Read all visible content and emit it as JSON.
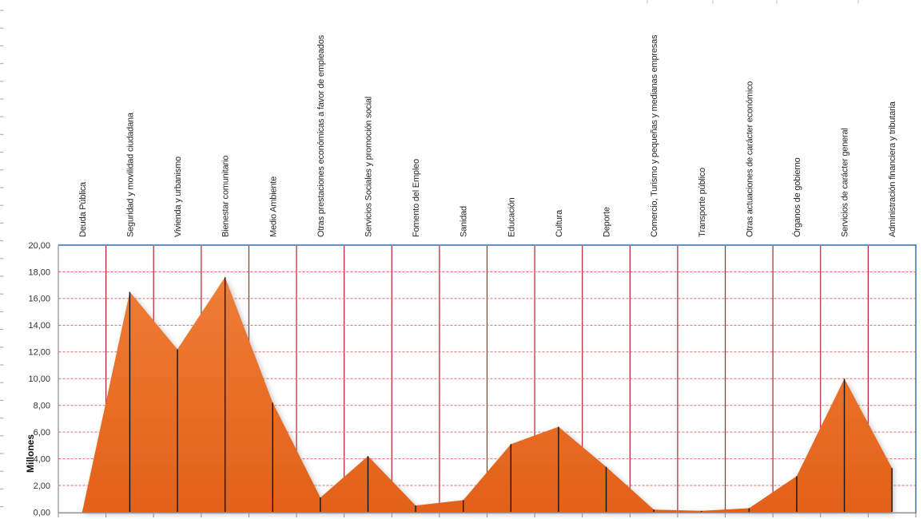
{
  "chart_data": {
    "type": "area",
    "title": "",
    "ylabel": "Millones",
    "categories": [
      "Deuda Pública",
      "Seguridad y movilidad ciudadana",
      "Vivienda y urbanismo",
      "Bienestar comunitario",
      "Medio Ambiente",
      "Otras prestaciones económicas a favor de empleados",
      "Servicios Sociales y promoción social",
      "Fomento del Empleo",
      "Sanidad",
      "Educación",
      "Cultura",
      "Deporte",
      "Comercio, Turismo y pequeñas y medianas empresas",
      "Transporte público",
      "Otras actuaciones de carácter económico",
      "Órganos de gobierno",
      "Servicios de carácter general",
      "Administración financiera y tributaria"
    ],
    "values": [
      0.0,
      16.5,
      12.2,
      17.6,
      8.2,
      1.1,
      4.2,
      0.5,
      0.9,
      5.1,
      6.4,
      3.4,
      0.2,
      0.1,
      0.3,
      2.7,
      10.0,
      3.3
    ],
    "ylim": [
      0,
      20
    ],
    "y_tick_step": 2,
    "y_tick_labels": [
      "0,00",
      "2,00",
      "4,00",
      "6,00",
      "8,00",
      "10,00",
      "12,00",
      "14,00",
      "16,00",
      "18,00",
      "20,00"
    ],
    "grid": true,
    "legend": "none",
    "colors": {
      "area_top": "#EE7D36",
      "area_mid": "#E86D25",
      "area_bottom": "#E2611A",
      "v_grid": "#B42025",
      "h_grid": "#E36A6A",
      "border_blue": "#4F81BD",
      "axis_gray": "#8C8C8C",
      "bottom_axis": "#8F96A0",
      "drop_line": "#141414",
      "edge_tick": "#B4B4B4"
    }
  }
}
